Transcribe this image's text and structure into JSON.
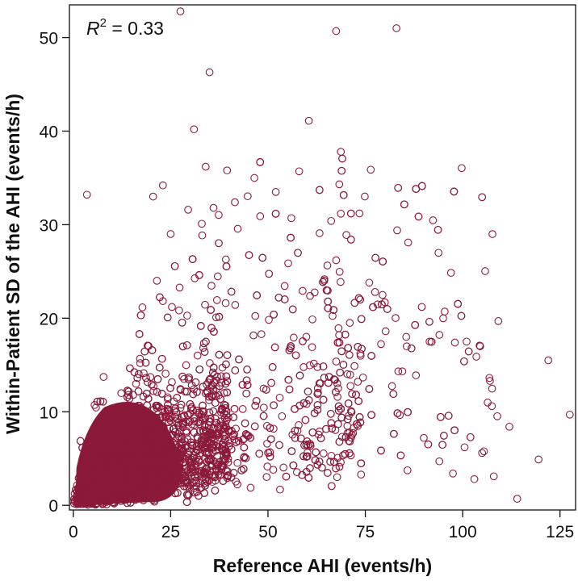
{
  "chart_data": {
    "type": "scatter",
    "xlabel": "Reference AHI (events/h)",
    "ylabel": "Within-Patient SD of the AHI (events/h)",
    "annotation": {
      "base": "R",
      "sup": "2",
      "rest": " = 0.33"
    },
    "xlim": [
      -1,
      129
    ],
    "ylim": [
      -0.5,
      53.5
    ],
    "x_ticks": [
      0,
      25,
      50,
      75,
      100,
      125
    ],
    "y_ticks": [
      0,
      10,
      20,
      30,
      40,
      50
    ],
    "grid": false,
    "legend": "none",
    "marker": "open-circle",
    "marker_color": "#8b1a3a",
    "dense_core_color": "#8b1a3a",
    "n_dense_points": 5200,
    "points": [
      [
        27.5,
        52.8
      ],
      [
        67.5,
        50.7
      ],
      [
        83.0,
        51.0
      ],
      [
        35.0,
        46.3
      ],
      [
        31.0,
        40.2
      ],
      [
        60.5,
        41.1
      ],
      [
        3.5,
        33.2
      ],
      [
        20.5,
        33.0
      ],
      [
        23.0,
        34.2
      ],
      [
        34.0,
        36.2
      ],
      [
        39.5,
        35.8
      ],
      [
        46.5,
        35.0
      ],
      [
        58.0,
        35.7
      ],
      [
        52.0,
        33.5
      ],
      [
        73.5,
        31.2
      ],
      [
        86.0,
        28.1
      ],
      [
        67.5,
        26.2
      ],
      [
        122.0,
        15.5
      ],
      [
        127.5,
        9.7
      ],
      [
        119.5,
        4.9
      ],
      [
        114.0,
        0.7
      ],
      [
        112.0,
        8.4
      ],
      [
        107.0,
        13.3
      ],
      [
        104.5,
        17.0
      ],
      [
        101.0,
        17.5
      ],
      [
        98.0,
        17.4
      ],
      [
        95.0,
        20.0
      ],
      [
        91.5,
        17.5
      ],
      [
        89.5,
        21.2
      ],
      [
        88.0,
        13.9
      ],
      [
        108.0,
        3.1
      ],
      [
        105.0,
        5.6
      ],
      [
        103.0,
        2.8
      ],
      [
        100.5,
        6.2
      ],
      [
        97.5,
        3.4
      ],
      [
        94.0,
        4.7
      ],
      [
        36.0,
        31.8
      ],
      [
        41.5,
        32.4
      ],
      [
        29.5,
        31.6
      ],
      [
        33.0,
        30.1
      ],
      [
        25.0,
        29.0
      ],
      [
        48.0,
        30.9
      ],
      [
        56.0,
        30.7
      ],
      [
        76.0,
        23.8
      ],
      [
        77.5,
        22.8
      ],
      [
        80.0,
        21.7
      ],
      [
        71.0,
        19.5
      ],
      [
        85.5,
        18.0
      ]
    ]
  }
}
